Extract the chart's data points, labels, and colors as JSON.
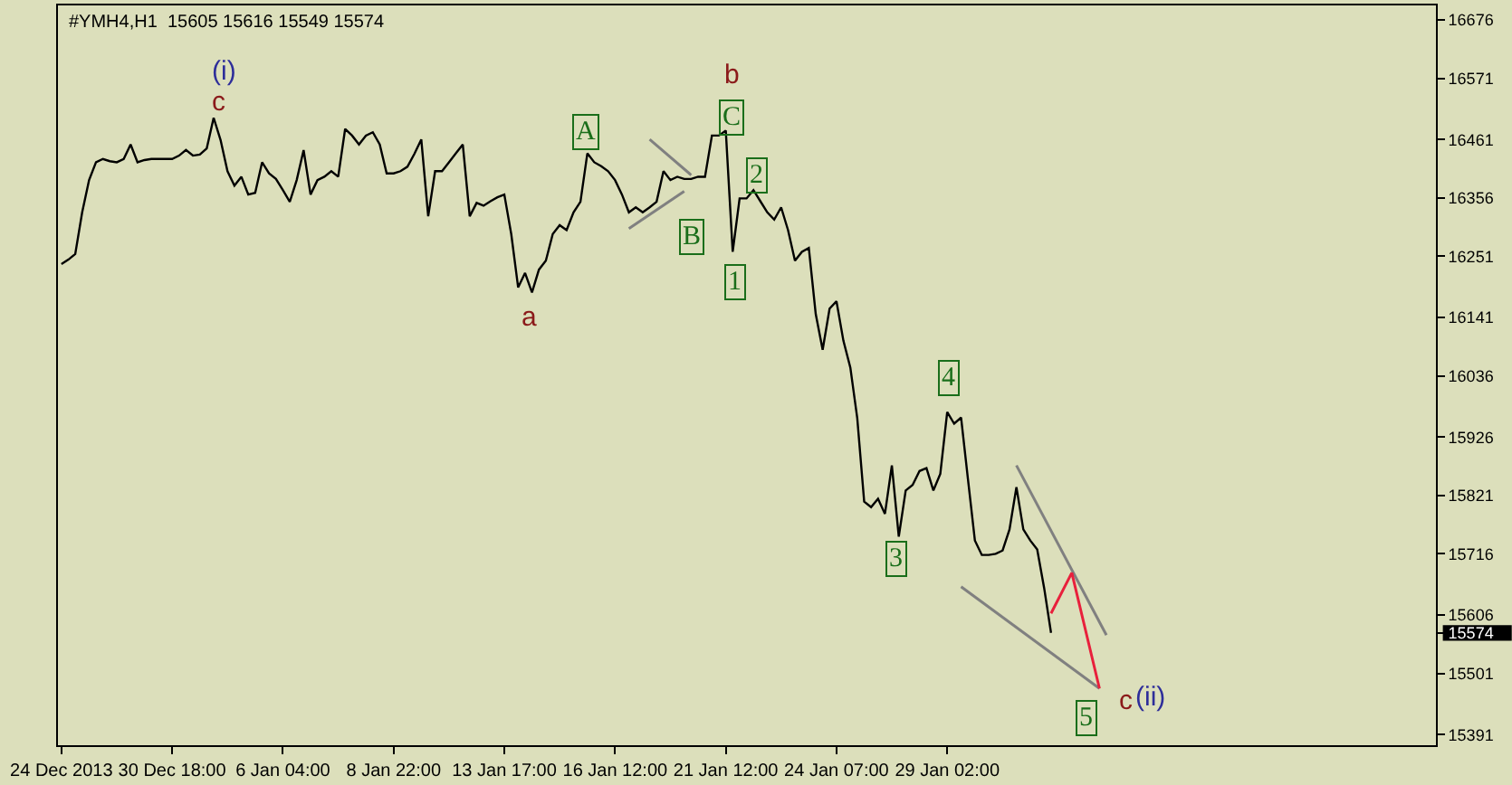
{
  "chart_data": {
    "type": "line",
    "title": "#YMH4,H1  15605 15616 15549 15574",
    "categories": [
      "24 Dec 2013",
      null,
      null,
      null,
      null,
      null,
      null,
      null,
      null,
      null,
      null,
      null,
      null,
      null,
      null,
      null,
      "30 Dec 18:00",
      null,
      null,
      null,
      null,
      null,
      null,
      null,
      null,
      null,
      null,
      null,
      null,
      null,
      null,
      null,
      "6 Jan 04:00",
      null,
      null,
      null,
      null,
      null,
      null,
      null,
      null,
      null,
      null,
      null,
      null,
      null,
      null,
      null,
      "8 Jan 22:00",
      null,
      null,
      null,
      null,
      null,
      null,
      null,
      null,
      null,
      null,
      null,
      null,
      null,
      null,
      null,
      "13 Jan 17:00",
      null,
      null,
      null,
      null,
      null,
      null,
      null,
      null,
      null,
      null,
      null,
      null,
      null,
      null,
      null,
      "16 Jan 12:00",
      null,
      null,
      null,
      null,
      null,
      null,
      null,
      null,
      null,
      null,
      null,
      null,
      null,
      null,
      null,
      "21 Jan 12:00",
      null,
      null,
      null,
      null,
      null,
      null,
      null,
      null,
      null,
      null,
      null,
      null,
      null,
      null,
      null,
      "24 Jan 07:00",
      null,
      null,
      null,
      null,
      null,
      null,
      null,
      null,
      null,
      null,
      null,
      null,
      null,
      null,
      null,
      "29 Jan 02:00",
      null,
      null,
      null,
      null,
      null,
      null,
      null,
      null,
      null,
      null,
      null,
      null,
      null,
      null,
      null,
      null,
      null,
      null,
      null,
      null,
      null,
      null,
      null
    ],
    "ylim": [
      15372,
      16702
    ],
    "yticks": [
      16676,
      16571,
      16461,
      16356,
      16251,
      16141,
      16036,
      15926,
      15821,
      15716,
      15606,
      15574,
      15501,
      15391
    ],
    "series": [
      {
        "color": "#000000",
        "values": [
          16237,
          16245,
          16255,
          16330,
          16388,
          16420,
          16426,
          16422,
          16420,
          16426,
          16452,
          16420,
          16424,
          16426,
          16426,
          16426,
          16426,
          16432,
          16442,
          16432,
          16434,
          16445,
          16500,
          16460,
          16404,
          16378,
          16394,
          16362,
          16365,
          16420,
          16400,
          16390,
          16370,
          16349,
          16388,
          16442,
          16362,
          16388,
          16394,
          16404,
          16394,
          16480,
          16468,
          16452,
          16468,
          16474,
          16452,
          16400,
          16400,
          16404,
          16412,
          16435,
          16461,
          16323,
          16404,
          16404,
          16420,
          16436,
          16452,
          16323,
          16347,
          16342,
          16350,
          16357,
          16362,
          16291,
          16195,
          16221,
          16186,
          16227,
          16243,
          16291,
          16307,
          16298,
          16330,
          16349,
          16436,
          16420,
          16413,
          16404,
          16388,
          16362,
          16330,
          16339,
          16330,
          16339,
          16349,
          16404,
          16388,
          16394,
          16390,
          16390,
          16394,
          16394,
          16468,
          16468,
          16477,
          16259,
          16355,
          16355,
          16370,
          16350,
          16330,
          16317,
          16339,
          16298,
          16243,
          16259,
          16266,
          16147,
          16083,
          16157,
          16170,
          16099,
          16051,
          15960,
          15810,
          15800,
          15815,
          15788,
          15875,
          15747,
          15830,
          15840,
          15865,
          15870,
          15830,
          15860,
          15971,
          15950,
          15961,
          15850,
          15740,
          15714,
          15714,
          15716,
          15722,
          15760,
          15836,
          15760,
          15740,
          15724,
          15655,
          15574,
          null,
          null,
          null,
          null,
          null,
          null,
          null,
          null
        ]
      },
      {
        "color": "#808080",
        "values": [
          null,
          null,
          null,
          null,
          null,
          null,
          null,
          null,
          null,
          null,
          null,
          null,
          null,
          null,
          null,
          null,
          null,
          null,
          null,
          null,
          null,
          null,
          null,
          null,
          null,
          null,
          null,
          null,
          null,
          null,
          null,
          null,
          null,
          null,
          null,
          null,
          null,
          null,
          null,
          null,
          null,
          null,
          null,
          null,
          null,
          null,
          null,
          null,
          null,
          null,
          null,
          null,
          null,
          null,
          null,
          null,
          null,
          null,
          null,
          null,
          null,
          null,
          null,
          null,
          null,
          null,
          null,
          null,
          null,
          null,
          null,
          null,
          null,
          null,
          null,
          null,
          null,
          null,
          null,
          null,
          null,
          null,
          null,
          null,
          null,
          16461,
          null,
          null,
          null,
          null,
          null,
          16397,
          null,
          null,
          null,
          null,
          null,
          null,
          null,
          null,
          null,
          null,
          null,
          null,
          null,
          null,
          null,
          null,
          null,
          null,
          null,
          null,
          null,
          null,
          null,
          null,
          null,
          null,
          null,
          null,
          null,
          null,
          null,
          null,
          null,
          null,
          null,
          null,
          null,
          null,
          null,
          null,
          null,
          null,
          null,
          null,
          null,
          null,
          null,
          null,
          null,
          null,
          null,
          null,
          null,
          null,
          null,
          null,
          null,
          null,
          null,
          null
        ]
      },
      {
        "color": "#808080",
        "values": [
          null,
          null,
          null,
          null,
          null,
          null,
          null,
          null,
          null,
          null,
          null,
          null,
          null,
          null,
          null,
          null,
          null,
          null,
          null,
          null,
          null,
          null,
          null,
          null,
          null,
          null,
          null,
          null,
          null,
          null,
          null,
          null,
          null,
          null,
          null,
          null,
          null,
          null,
          null,
          null,
          null,
          null,
          null,
          null,
          null,
          null,
          null,
          null,
          null,
          null,
          null,
          null,
          null,
          null,
          null,
          null,
          null,
          null,
          null,
          null,
          null,
          null,
          null,
          null,
          null,
          null,
          null,
          null,
          null,
          null,
          null,
          null,
          null,
          null,
          null,
          null,
          null,
          null,
          null,
          null,
          null,
          null,
          16301,
          null,
          null,
          null,
          null,
          null,
          null,
          null,
          16368,
          null,
          null,
          null,
          null,
          null,
          null,
          null,
          null,
          null,
          null,
          null,
          null,
          null,
          null,
          null,
          null,
          null,
          null,
          null,
          null,
          null,
          null,
          null,
          null,
          null,
          null,
          null,
          null,
          null,
          null,
          null,
          null,
          null,
          null,
          null,
          null,
          null,
          null,
          null,
          null,
          null,
          null,
          null,
          null,
          null,
          null,
          null,
          null,
          null,
          null,
          null,
          null,
          null,
          null,
          null,
          null,
          null,
          null,
          null,
          null,
          null
        ]
      },
      {
        "color": "#808080",
        "values": [
          null,
          null,
          null,
          null,
          null,
          null,
          null,
          null,
          null,
          null,
          null,
          null,
          null,
          null,
          null,
          null,
          null,
          null,
          null,
          null,
          null,
          null,
          null,
          null,
          null,
          null,
          null,
          null,
          null,
          null,
          null,
          null,
          null,
          null,
          null,
          null,
          null,
          null,
          null,
          null,
          null,
          null,
          null,
          null,
          null,
          null,
          null,
          null,
          null,
          null,
          null,
          null,
          null,
          null,
          null,
          null,
          null,
          null,
          null,
          null,
          null,
          null,
          null,
          null,
          null,
          null,
          null,
          null,
          null,
          null,
          null,
          null,
          null,
          null,
          null,
          null,
          null,
          null,
          null,
          null,
          null,
          null,
          null,
          null,
          null,
          null,
          null,
          null,
          null,
          null,
          null,
          null,
          null,
          null,
          null,
          null,
          null,
          null,
          null,
          null,
          null,
          null,
          null,
          null,
          null,
          null,
          null,
          null,
          null,
          null,
          null,
          null,
          null,
          null,
          null,
          null,
          null,
          null,
          null,
          null,
          null,
          null,
          null,
          null,
          null,
          null,
          null,
          null,
          null,
          null,
          15657,
          null,
          null,
          null,
          null,
          null,
          null,
          null,
          null,
          null,
          null,
          null,
          null,
          null,
          null,
          null,
          null,
          null,
          null,
          null,
          15474,
          null
        ]
      },
      {
        "color": "#808080",
        "values": [
          null,
          null,
          null,
          null,
          null,
          null,
          null,
          null,
          null,
          null,
          null,
          null,
          null,
          null,
          null,
          null,
          null,
          null,
          null,
          null,
          null,
          null,
          null,
          null,
          null,
          null,
          null,
          null,
          null,
          null,
          null,
          null,
          null,
          null,
          null,
          null,
          null,
          null,
          null,
          null,
          null,
          null,
          null,
          null,
          null,
          null,
          null,
          null,
          null,
          null,
          null,
          null,
          null,
          null,
          null,
          null,
          null,
          null,
          null,
          null,
          null,
          null,
          null,
          null,
          null,
          null,
          null,
          null,
          null,
          null,
          null,
          null,
          null,
          null,
          null,
          null,
          null,
          null,
          null,
          null,
          null,
          null,
          null,
          null,
          null,
          null,
          null,
          null,
          null,
          null,
          null,
          null,
          null,
          null,
          null,
          null,
          null,
          null,
          null,
          null,
          null,
          null,
          null,
          null,
          null,
          null,
          null,
          null,
          null,
          null,
          null,
          null,
          null,
          null,
          null,
          null,
          null,
          null,
          null,
          null,
          null,
          null,
          null,
          null,
          null,
          null,
          null,
          null,
          null,
          null,
          null,
          null,
          null,
          null,
          null,
          null,
          null,
          null,
          15875,
          null,
          null,
          null,
          null,
          null,
          null,
          null,
          null,
          null,
          null,
          null,
          null,
          15570
        ]
      },
      {
        "color": "#e8203c",
        "values": [
          null,
          null,
          null,
          null,
          null,
          null,
          null,
          null,
          null,
          null,
          null,
          null,
          null,
          null,
          null,
          null,
          null,
          null,
          null,
          null,
          null,
          null,
          null,
          null,
          null,
          null,
          null,
          null,
          null,
          null,
          null,
          null,
          null,
          null,
          null,
          null,
          null,
          null,
          null,
          null,
          null,
          null,
          null,
          null,
          null,
          null,
          null,
          null,
          null,
          null,
          null,
          null,
          null,
          null,
          null,
          null,
          null,
          null,
          null,
          null,
          null,
          null,
          null,
          null,
          null,
          null,
          null,
          null,
          null,
          null,
          null,
          null,
          null,
          null,
          null,
          null,
          null,
          null,
          null,
          null,
          null,
          null,
          null,
          null,
          null,
          null,
          null,
          null,
          null,
          null,
          null,
          null,
          null,
          null,
          null,
          null,
          null,
          null,
          null,
          null,
          null,
          null,
          null,
          null,
          null,
          null,
          null,
          null,
          null,
          null,
          null,
          null,
          null,
          null,
          null,
          null,
          null,
          null,
          null,
          null,
          null,
          null,
          null,
          null,
          null,
          null,
          null,
          null,
          null,
          null,
          null,
          null,
          null,
          null,
          null,
          null,
          null,
          null,
          null,
          null,
          null,
          null,
          null,
          15609,
          null,
          null,
          15682,
          null,
          null,
          null,
          15474,
          null
        ]
      }
    ],
    "annotations": [
      "(i)",
      "c",
      "A",
      "B",
      "C",
      "b",
      "a",
      "1",
      "2",
      "3",
      "4",
      {
        "text": "5",
        "y": 15474
      },
      "c",
      "(ii)"
    ]
  }
}
